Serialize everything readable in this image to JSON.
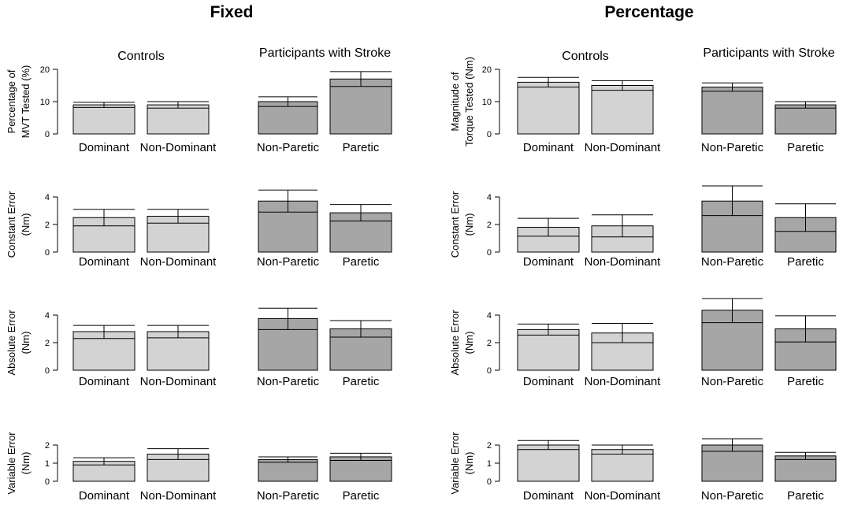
{
  "colors": {
    "control_bar": "#d3d3d3",
    "stroke_bar": "#a6a6a6",
    "stroke_line": "#000000",
    "background": "#ffffff"
  },
  "group_labels": {
    "controls": "Controls",
    "stroke": "Participants with Stroke"
  },
  "categories": [
    "Dominant",
    "Non-Dominant",
    "Non-Paretic",
    "Paretic"
  ],
  "chart_data": [
    {
      "type": "bar",
      "column": "Fixed",
      "title": "Fixed",
      "ylabel": [
        "Percentage of",
        "MVT Tested (%)"
      ],
      "ylim": [
        0,
        20
      ],
      "yticks": [
        0,
        10,
        20
      ],
      "show_group_labels": true,
      "categories": [
        "Dominant",
        "Non-Dominant",
        "Non-Paretic",
        "Paretic"
      ],
      "values": [
        9,
        9,
        10,
        17
      ],
      "error_upper": [
        9.8,
        10,
        11.5,
        19.3
      ],
      "error_lower": [
        8.2,
        8,
        8.5,
        14.7
      ]
    },
    {
      "type": "bar",
      "column": "Percentage",
      "title": "Percentage",
      "ylabel": [
        "Magnitude of",
        "Torque Tested (Nm)"
      ],
      "ylim": [
        0,
        20
      ],
      "yticks": [
        0,
        10,
        20
      ],
      "show_group_labels": true,
      "categories": [
        "Dominant",
        "Non-Dominant",
        "Non-Paretic",
        "Paretic"
      ],
      "values": [
        16,
        15,
        14.5,
        9
      ],
      "error_upper": [
        17.5,
        16.5,
        15.8,
        10
      ],
      "error_lower": [
        14.5,
        13.5,
        13.2,
        8
      ]
    },
    {
      "type": "bar",
      "column": "Fixed",
      "title": "",
      "ylabel": [
        "Constant Error",
        "(Nm)"
      ],
      "ylim": [
        0,
        4
      ],
      "yticks": [
        0,
        2,
        4
      ],
      "show_group_labels": false,
      "categories": [
        "Dominant",
        "Non-Dominant",
        "Non-Paretic",
        "Paretic"
      ],
      "values": [
        2.5,
        2.6,
        3.7,
        2.85
      ],
      "error_upper": [
        3.1,
        3.1,
        4.5,
        3.45
      ],
      "error_lower": [
        1.9,
        2.1,
        2.9,
        2.25
      ]
    },
    {
      "type": "bar",
      "column": "Percentage",
      "title": "",
      "ylabel": [
        "Constant Error",
        "(Nm)"
      ],
      "ylim": [
        0,
        4
      ],
      "yticks": [
        0,
        2,
        4
      ],
      "show_group_labels": false,
      "categories": [
        "Dominant",
        "Non-Dominant",
        "Non-Paretic",
        "Paretic"
      ],
      "values": [
        1.8,
        1.9,
        3.7,
        2.5
      ],
      "error_upper": [
        2.45,
        2.7,
        4.8,
        3.5
      ],
      "error_lower": [
        1.15,
        1.1,
        2.65,
        1.5
      ]
    },
    {
      "type": "bar",
      "column": "Fixed",
      "title": "",
      "ylabel": [
        "Absolute Error",
        "(Nm)"
      ],
      "ylim": [
        0,
        4
      ],
      "yticks": [
        0,
        2,
        4
      ],
      "show_group_labels": false,
      "categories": [
        "Dominant",
        "Non-Dominant",
        "Non-Paretic",
        "Paretic"
      ],
      "values": [
        2.8,
        2.8,
        3.75,
        3.0
      ],
      "error_upper": [
        3.25,
        3.25,
        4.5,
        3.6
      ],
      "error_lower": [
        2.3,
        2.35,
        2.95,
        2.4
      ]
    },
    {
      "type": "bar",
      "column": "Percentage",
      "title": "",
      "ylabel": [
        "Absolute Error",
        "(Nm)"
      ],
      "ylim": [
        0,
        4
      ],
      "yticks": [
        0,
        2,
        4
      ],
      "show_group_labels": false,
      "categories": [
        "Dominant",
        "Non-Dominant",
        "Non-Paretic",
        "Paretic"
      ],
      "values": [
        2.95,
        2.7,
        4.35,
        3.0
      ],
      "error_upper": [
        3.35,
        3.4,
        5.2,
        3.95
      ],
      "error_lower": [
        2.55,
        2.0,
        3.45,
        2.05
      ]
    },
    {
      "type": "bar",
      "column": "Fixed",
      "title": "",
      "ylabel": [
        "Variable Error",
        "(Nm)"
      ],
      "ylim": [
        0,
        2
      ],
      "yticks": [
        0,
        1,
        2
      ],
      "show_group_labels": false,
      "categories": [
        "Dominant",
        "Non-Dominant",
        "Non-Paretic",
        "Paretic"
      ],
      "values": [
        1.1,
        1.5,
        1.2,
        1.35
      ],
      "error_upper": [
        1.3,
        1.8,
        1.35,
        1.55
      ],
      "error_lower": [
        0.9,
        1.2,
        1.05,
        1.15
      ]
    },
    {
      "type": "bar",
      "column": "Percentage",
      "title": "",
      "ylabel": [
        "Variable Error",
        "(Nm)"
      ],
      "ylim": [
        0,
        2
      ],
      "yticks": [
        0,
        1,
        2
      ],
      "show_group_labels": false,
      "categories": [
        "Dominant",
        "Non-Dominant",
        "Non-Paretic",
        "Paretic"
      ],
      "values": [
        2.0,
        1.75,
        2.0,
        1.4
      ],
      "error_upper": [
        2.25,
        2.0,
        2.35,
        1.6
      ],
      "error_lower": [
        1.75,
        1.5,
        1.65,
        1.2
      ]
    }
  ]
}
